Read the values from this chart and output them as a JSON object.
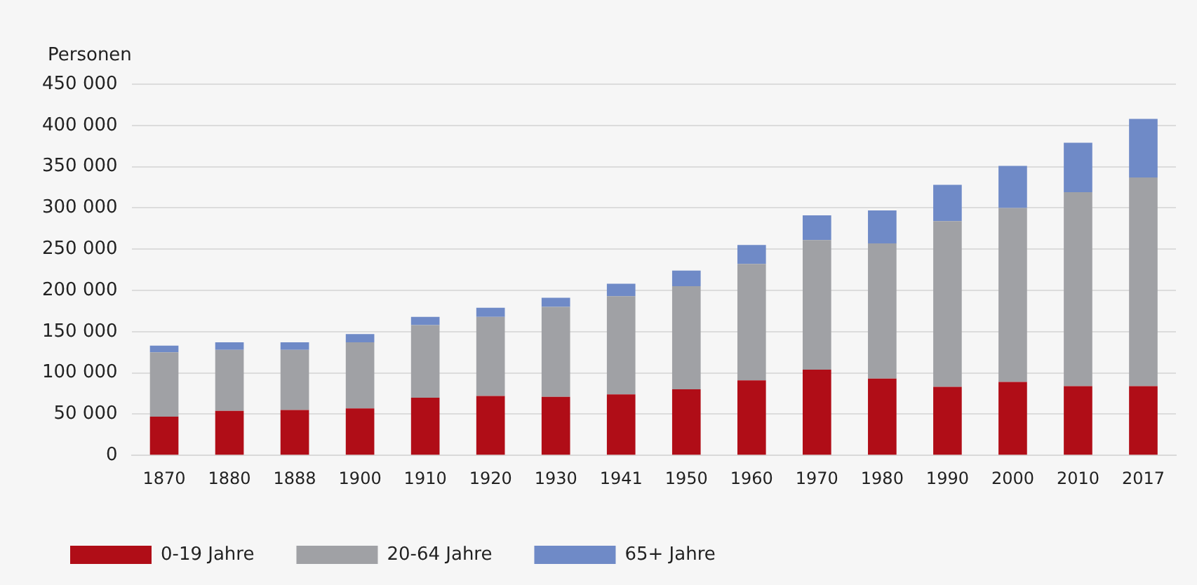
{
  "chart_data": {
    "type": "bar",
    "stacked": true,
    "ylabel": "Personen",
    "categories": [
      "1870",
      "1880",
      "1888",
      "1900",
      "1910",
      "1920",
      "1930",
      "1941",
      "1950",
      "1960",
      "1970",
      "1980",
      "1990",
      "2000",
      "2010",
      "2017"
    ],
    "series": [
      {
        "name": "0-19 Jahre",
        "color": "#b00d17",
        "values": [
          47000,
          54000,
          55000,
          57000,
          70000,
          72000,
          71000,
          74000,
          80000,
          91000,
          104000,
          93000,
          83000,
          89000,
          84000,
          84000
        ]
      },
      {
        "name": "20-64 Jahre",
        "color": "#a0a1a5",
        "values": [
          78000,
          74000,
          73000,
          80000,
          88000,
          96000,
          109000,
          119000,
          125000,
          141000,
          157000,
          164000,
          201000,
          211000,
          235000,
          253000
        ]
      },
      {
        "name": "65+ Jahre",
        "color": "#6f8ac7",
        "values": [
          8000,
          9000,
          9000,
          10000,
          10000,
          11000,
          11000,
          15000,
          19000,
          23000,
          30000,
          40000,
          44000,
          51000,
          60000,
          71000
        ]
      }
    ],
    "ylim": [
      0,
      450000
    ],
    "yticks": [
      0,
      {
        "value": 50000,
        "label": "50 000"
      },
      {
        "value": 100000,
        "label": "100 000"
      },
      {
        "value": 150000,
        "label": "150 000"
      },
      {
        "value": 200000,
        "label": "200 000"
      },
      {
        "value": 250000,
        "label": "250 000"
      },
      {
        "value": 300000,
        "label": "300 000"
      },
      {
        "value": 350000,
        "label": "350 000"
      },
      {
        "value": 400000,
        "label": "400 000"
      },
      {
        "value": 450000,
        "label": "450 000"
      }
    ],
    "grid": "y",
    "legend": "bottom left"
  }
}
